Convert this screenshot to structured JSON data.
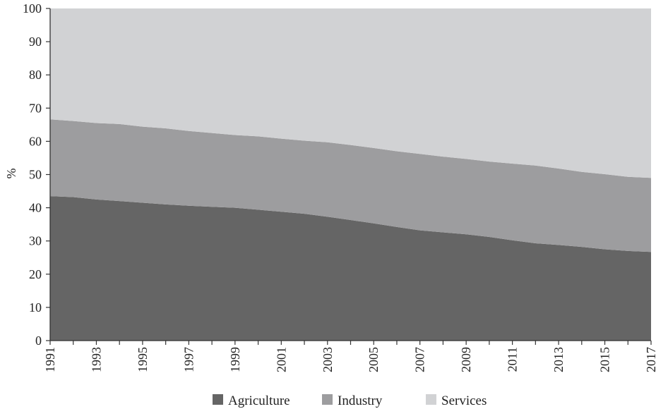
{
  "chart_data": {
    "type": "area",
    "stacked": true,
    "ylabel": "%",
    "ylim": [
      0,
      100
    ],
    "yticks": [
      0,
      10,
      20,
      30,
      40,
      50,
      60,
      70,
      80,
      90,
      100
    ],
    "xticks": [
      "1991",
      "1993",
      "1995",
      "1997",
      "1999",
      "2001",
      "2003",
      "2005",
      "2007",
      "2009",
      "2011",
      "2013",
      "2015",
      "2017"
    ],
    "x": [
      1991,
      1992,
      1993,
      1994,
      1995,
      1996,
      1997,
      1998,
      1999,
      2000,
      2001,
      2002,
      2003,
      2004,
      2005,
      2006,
      2007,
      2008,
      2009,
      2010,
      2011,
      2012,
      2013,
      2014,
      2015,
      2016,
      2017
    ],
    "series": [
      {
        "name": "Agriculture",
        "color": "#656565",
        "values": [
          43.5,
          43.2,
          42.5,
          42.0,
          41.5,
          41.0,
          40.6,
          40.3,
          40.0,
          39.4,
          38.8,
          38.2,
          37.3,
          36.3,
          35.3,
          34.2,
          33.2,
          32.6,
          32.0,
          31.2,
          30.2,
          29.3,
          28.8,
          28.2,
          27.5,
          27.0,
          26.7
        ]
      },
      {
        "name": "Industry",
        "color": "#9d9d9f",
        "values": [
          23.1,
          22.9,
          23.0,
          23.2,
          22.9,
          22.9,
          22.5,
          22.2,
          21.9,
          22.1,
          22.0,
          22.0,
          22.4,
          22.6,
          22.7,
          22.8,
          23.0,
          22.8,
          22.7,
          22.7,
          23.1,
          23.4,
          23.0,
          22.6,
          22.6,
          22.3,
          22.3
        ]
      },
      {
        "name": "Services",
        "color": "#d1d2d4",
        "values": [
          33.4,
          33.9,
          34.5,
          34.8,
          35.6,
          36.1,
          36.9,
          37.5,
          38.1,
          38.5,
          39.2,
          39.8,
          40.3,
          41.1,
          42.0,
          43.0,
          43.8,
          44.6,
          45.3,
          46.1,
          46.7,
          47.3,
          48.2,
          49.2,
          49.9,
          50.7,
          51.0
        ]
      }
    ],
    "legend_position": "bottom-center"
  }
}
